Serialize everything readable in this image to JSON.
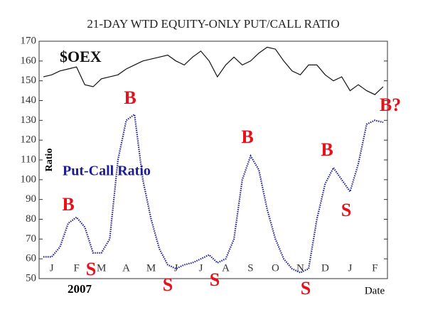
{
  "chart_data": {
    "type": "line",
    "title": "21-DAY WTD EQUITY-ONLY PUT/CALL RATIO",
    "y_label": "Ratio",
    "x_label": "Date",
    "year_label": "2007",
    "categories": [
      null,
      "J",
      null,
      null,
      "F",
      null,
      null,
      "M",
      null,
      null,
      "A",
      null,
      null,
      "M",
      null,
      null,
      "J",
      null,
      null,
      "J",
      null,
      null,
      "A",
      null,
      null,
      "S",
      null,
      null,
      "O",
      null,
      null,
      "N",
      null,
      null,
      "D",
      null,
      null,
      "J",
      null,
      null,
      "F",
      null
    ],
    "series": [
      {
        "name": "$OEX",
        "color": "#111111",
        "values": [
          152,
          153,
          155,
          156,
          157,
          148,
          147,
          151,
          152,
          153,
          156,
          158,
          160,
          161,
          162,
          163,
          160,
          158,
          162,
          165,
          160,
          152,
          158,
          162,
          158,
          160,
          164,
          167,
          166,
          160,
          155,
          153,
          158,
          158,
          153,
          150,
          152,
          145,
          148,
          145,
          143,
          147
        ]
      },
      {
        "name": "Put-Call Ratio",
        "color": "#1c1c96",
        "values": [
          61,
          61,
          66,
          78,
          81,
          76,
          63,
          63,
          70,
          110,
          130,
          133,
          100,
          80,
          65,
          57,
          55,
          57,
          58,
          60,
          62,
          58,
          60,
          70,
          100,
          112,
          105,
          85,
          70,
          60,
          55,
          53,
          55,
          80,
          98,
          106,
          100,
          94,
          108,
          128,
          130,
          129
        ]
      }
    ],
    "annotations": [
      "B",
      "S",
      "B",
      "S",
      "S",
      "B",
      "S",
      "B",
      "S",
      "B?"
    ],
    "ylim": [
      50,
      170
    ],
    "yticks": [
      50,
      60,
      70,
      80,
      90,
      100,
      110,
      120,
      130,
      140,
      150,
      160,
      170
    ]
  }
}
